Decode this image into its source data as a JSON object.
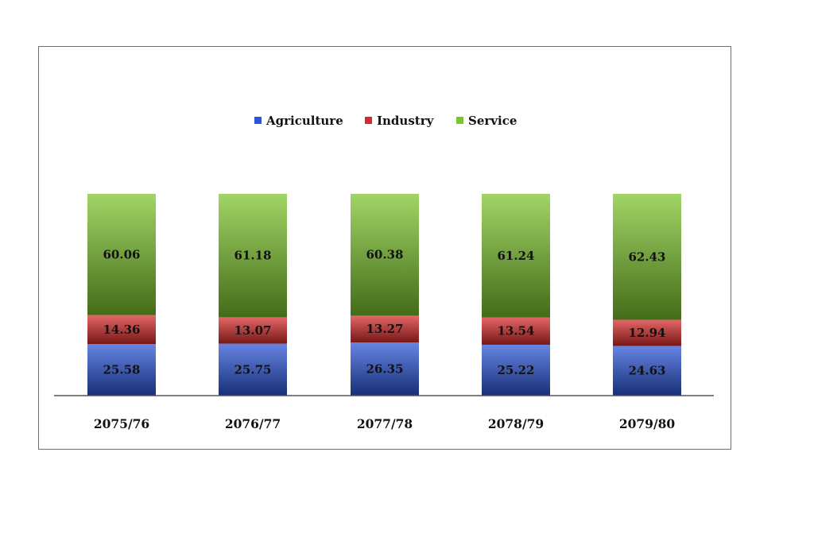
{
  "chart_data": {
    "type": "bar",
    "stacked": true,
    "categories": [
      "2075/76",
      "2076/77",
      "2077/78",
      "2078/79",
      "2079/80"
    ],
    "series": [
      {
        "name": "Agriculture",
        "color": "#2a55d8",
        "values": [
          25.58,
          25.75,
          26.35,
          25.22,
          24.63
        ]
      },
      {
        "name": "Industry",
        "color": "#d92a2a",
        "values": [
          14.36,
          13.07,
          13.27,
          13.54,
          12.94
        ]
      },
      {
        "name": "Service",
        "color": "#7cc52c",
        "values": [
          60.06,
          61.18,
          60.38,
          61.24,
          62.43
        ]
      }
    ],
    "ylim": [
      0,
      100
    ],
    "grid": false,
    "legend_position": "top-center",
    "data_labels": true,
    "title": "",
    "xlabel": "",
    "ylabel": ""
  }
}
